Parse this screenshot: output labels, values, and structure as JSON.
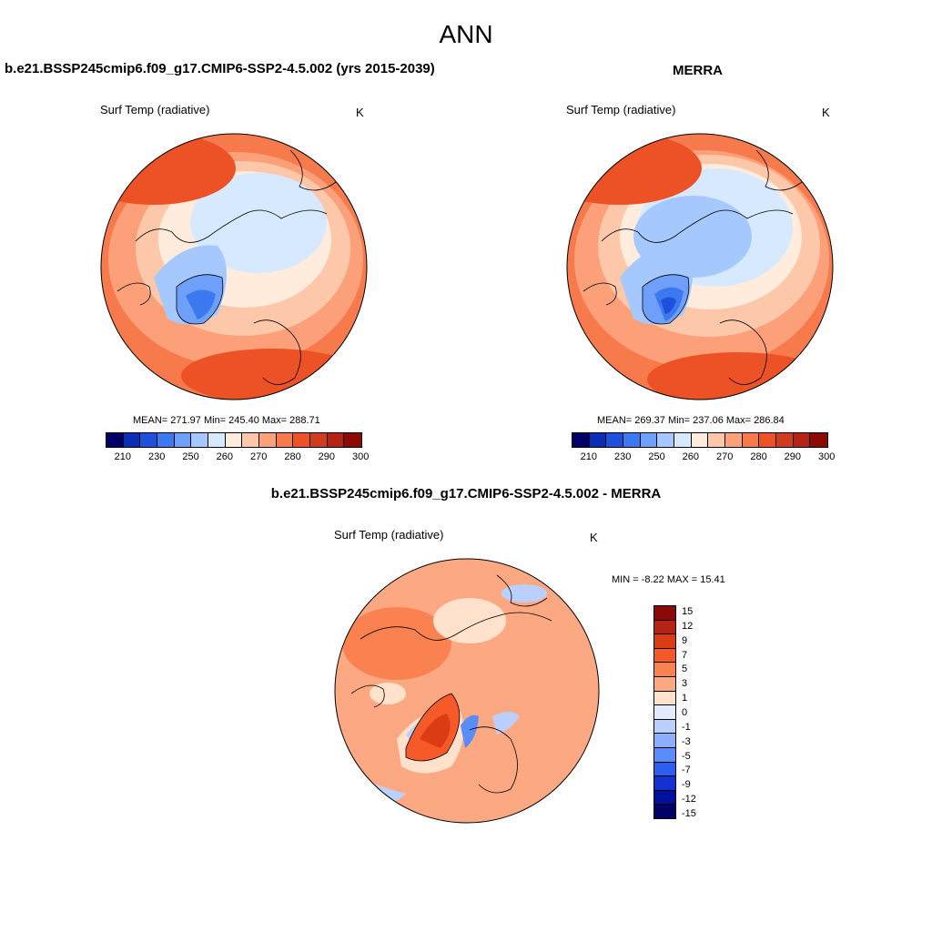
{
  "figure_title": "ANN",
  "palette_main": [
    "#000066",
    "#0a2db4",
    "#1e50dc",
    "#3c78f0",
    "#6ea0fa",
    "#a5c8ff",
    "#d7e9ff",
    "#ffecdc",
    "#fdc8aa",
    "#fca07a",
    "#f77a4c",
    "#ec5226",
    "#d23c1e",
    "#b42314",
    "#8c0a05"
  ],
  "palette_diff": [
    "#8c0a05",
    "#b42314",
    "#dc3c14",
    "#f55a28",
    "#fa8250",
    "#fca882",
    "#ffe1cc",
    "#e3ecff",
    "#bbd0ff",
    "#8cb0ff",
    "#5a8cfa",
    "#2d5ef0",
    "#1432d2",
    "#00109e",
    "#000066"
  ],
  "panels": [
    {
      "title": "b.e21.BSSP245cmip6.f09_g17.CMIP6-SSP2-4.5.002 (yrs 2015-2039)",
      "variable": "Surf Temp (radiative)",
      "units": "K",
      "stats": "MEAN= 271.97  Min= 245.40  Max= 288.71"
    },
    {
      "title": "MERRA",
      "variable": "Surf Temp (radiative)",
      "units": "K",
      "stats": "MEAN= 269.37  Min= 237.06  Max= 286.84"
    },
    {
      "title": "b.e21.BSSP245cmip6.f09_g17.CMIP6-SSP2-4.5.002 - MERRA",
      "variable": "Surf Temp (radiative)",
      "units": "K",
      "stats": "MIN =  -8.22 MAX =  15.41"
    }
  ],
  "colorbar_main": {
    "ticks": [
      "210",
      "230",
      "250",
      "260",
      "270",
      "280",
      "290",
      "300"
    ]
  },
  "colorbar_diff": {
    "ticks": [
      "15",
      "12",
      "9",
      "7",
      "5",
      "3",
      "1",
      "0",
      "-1",
      "-3",
      "-5",
      "-7",
      "-9",
      "-12",
      "-15"
    ]
  }
}
